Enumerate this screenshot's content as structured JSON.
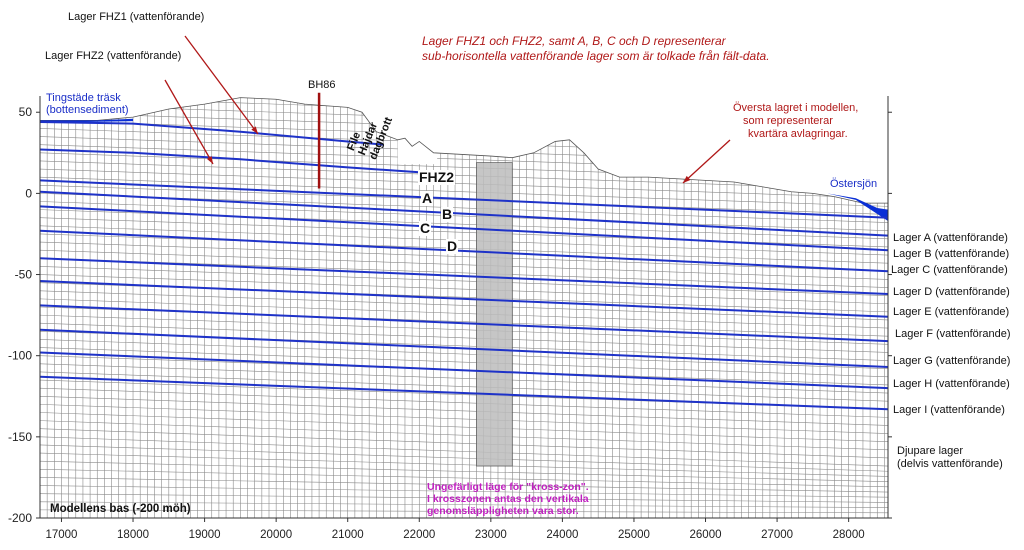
{
  "chart_data": {
    "type": "diagram",
    "x_ticks": [
      "17000",
      "18000",
      "19000",
      "20000",
      "21000",
      "22000",
      "23000",
      "24000",
      "25000",
      "26000",
      "27000",
      "28000"
    ],
    "y_ticks": [
      "50",
      "0",
      "-50",
      "-100",
      "-150",
      "-200"
    ],
    "xlim": [
      16700,
      28550
    ],
    "ylim": [
      -200,
      60
    ],
    "base_label": "Modellens bas (-200 möh)",
    "topography": [
      [
        16700,
        45
      ],
      [
        17500,
        45
      ],
      [
        18000,
        47
      ],
      [
        18500,
        52
      ],
      [
        19000,
        55
      ],
      [
        19500,
        59
      ],
      [
        20000,
        58
      ],
      [
        20400,
        55
      ],
      [
        20700,
        54
      ],
      [
        21000,
        53
      ],
      [
        21200,
        50
      ],
      [
        21400,
        38
      ],
      [
        21700,
        33
      ],
      [
        21800,
        34
      ],
      [
        21900,
        29
      ],
      [
        22000,
        32
      ],
      [
        22200,
        25
      ],
      [
        22600,
        24
      ],
      [
        23000,
        23
      ],
      [
        23300,
        22
      ],
      [
        23600,
        25
      ],
      [
        23900,
        32
      ],
      [
        24100,
        33
      ],
      [
        24300,
        25
      ],
      [
        24500,
        15
      ],
      [
        24800,
        10
      ],
      [
        25200,
        10
      ],
      [
        25600,
        9
      ],
      [
        26000,
        8
      ],
      [
        26400,
        7
      ],
      [
        26800,
        4
      ],
      [
        27200,
        1
      ],
      [
        27500,
        0
      ],
      [
        27800,
        -2
      ],
      [
        28200,
        -6
      ],
      [
        28550,
        -6
      ]
    ],
    "pit": {
      "x0": 21700,
      "x1": 21800,
      "x2": 22250,
      "y_top": 30,
      "y_bottom": 18
    },
    "lowland": [
      [
        16700,
        45
      ],
      [
        17500,
        45
      ],
      [
        18000,
        46
      ]
    ],
    "sea": [
      [
        27700,
        0
      ],
      [
        28100,
        -3
      ],
      [
        28400,
        -9
      ],
      [
        28550,
        -10
      ],
      [
        28550,
        -17
      ]
    ],
    "fhz_lines": [
      {
        "pts": [
          [
            16700,
            44
          ],
          [
            18000,
            43
          ],
          [
            19500,
            38
          ],
          [
            21000,
            32
          ],
          [
            21500,
            30
          ]
        ]
      },
      {
        "pts": [
          [
            16700,
            27
          ],
          [
            18000,
            25
          ],
          [
            19500,
            21
          ],
          [
            21000,
            16
          ],
          [
            22000,
            13
          ],
          [
            22500,
            11
          ]
        ]
      }
    ],
    "layers": [
      {
        "y0": 8,
        "y1": -15
      },
      {
        "y0": 1,
        "y1": -26
      },
      {
        "y0": -8,
        "y1": -35
      },
      {
        "y0": -23,
        "y1": -48
      },
      {
        "y0": -40,
        "y1": -62
      },
      {
        "y0": -54,
        "y1": -76
      },
      {
        "y0": -69,
        "y1": -91
      },
      {
        "y0": -84,
        "y1": -107
      },
      {
        "y0": -98,
        "y1": -120
      },
      {
        "y0": -113,
        "y1": -133
      }
    ],
    "borehole": {
      "label": "BH86",
      "x": 20600,
      "y_top": 62,
      "y_bottom": 3
    },
    "cross_zone": {
      "x0": 22800,
      "x1": 23300,
      "y_top": 19,
      "y_bottom": -168
    },
    "cross_zone_color": "#bdbdbd",
    "layer_color": "#1e32c8",
    "sea_color": "#0a2fd6",
    "pit_label": "File Hajdar dagbrott"
  },
  "annotations": {
    "fhz1": "Lager FHZ1 (vattenförande)",
    "fhz2": "Lager FHZ2 (vattenförande)",
    "description_line1": "Lager FHZ1 och FHZ2, samt A, B, C och D representerar",
    "description_line2": "sub-horisontella vattenförande lager som är tolkade från fält-data.",
    "top_layer_1": "Översta lagret i modellen,",
    "top_layer_2": "som representerar",
    "top_layer_3": "kvartära avlagringar.",
    "tingstade_1": "Tingstäde träsk",
    "tingstade_2": "(bottensediment)",
    "ostersjon": "Östersjön",
    "cross_1": "Ungefärligt läge för \"kross-zon\".",
    "cross_2": "I krosszonen antas den vertikala",
    "cross_3": "genomsläppligheten vara stor.",
    "label_fhz2": "FHZ2",
    "label_a": "A",
    "label_b": "B",
    "label_c": "C",
    "label_d": "D"
  },
  "layer_labels": [
    "Lager A (vattenförande)",
    "Lager B (vattenförande)",
    "Lager C (vattenförande)",
    "Lager D (vattenförande)",
    "Lager E (vattenförande)",
    "Lager F (vattenförande)",
    "Lager G (vattenförande)",
    "Lager H (vattenförande)",
    "Lager I (vattenförande)"
  ],
  "deep_layer_1": "Djupare lager",
  "deep_layer_2": "(delvis vattenförande)"
}
